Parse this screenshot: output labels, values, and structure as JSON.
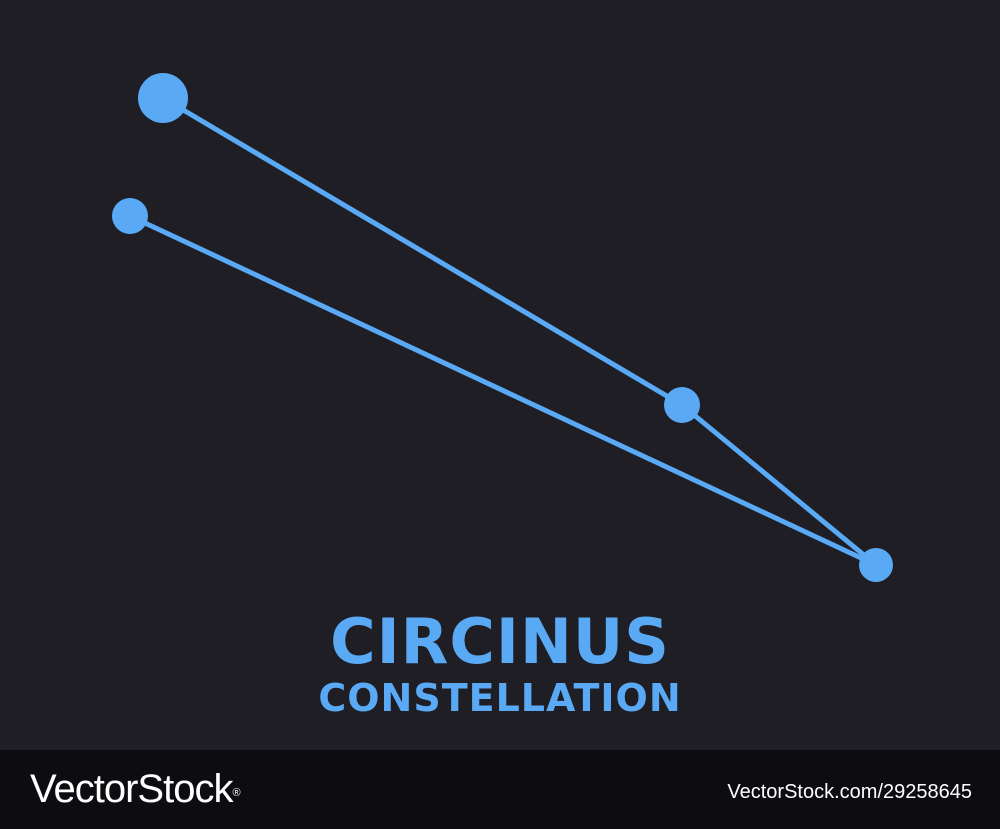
{
  "title": "CIRCINUS",
  "subtitle": "CONSTELLATION",
  "colors": {
    "background": "#1e1e24",
    "accent": "#5aa9f5",
    "footer": "#0d0d11",
    "footer_text": "#ffffff"
  },
  "watermark": {
    "brand": "VectorStock",
    "registered_mark": "®",
    "image_id": "VectorStock.com/29258645"
  }
}
